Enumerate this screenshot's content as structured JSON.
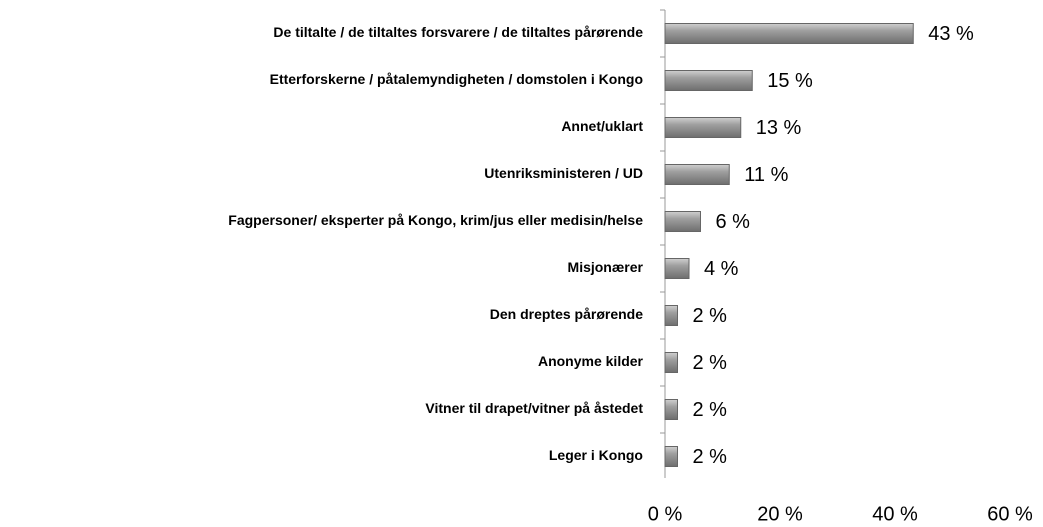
{
  "chart_data": {
    "type": "barh",
    "categories": [
      "De tiltalte / de tiltaltes forsvarere / de tiltaltes pårørende",
      "Etterforskerne / påtalemyndigheten / domstolen i Kongo",
      "Annet/uklart",
      "Utenriksministeren / UD",
      "Fagpersoner/ eksperter på Kongo, krim/jus eller medisin/helse",
      "Misjonærer",
      "Den dreptes pårørende",
      "Anonyme kilder",
      "Vitner til drapet/vitner på åstedet",
      "Leger i Kongo"
    ],
    "values": [
      43,
      15,
      13,
      11,
      6,
      4,
      2,
      2,
      2,
      2
    ],
    "value_labels": [
      "43 %",
      "15 %",
      "13 %",
      "11 %",
      "6 %",
      "4 %",
      "2 %",
      "2 %",
      "2 %",
      "2 %"
    ],
    "color": "#8c8c8c",
    "xlim": [
      0,
      60
    ],
    "xticks": [
      {
        "value": 0,
        "label": "0 %"
      },
      {
        "value": 20,
        "label": "20 %"
      },
      {
        "value": 40,
        "label": "40 %"
      },
      {
        "value": 60,
        "label": "60 %"
      }
    ]
  }
}
